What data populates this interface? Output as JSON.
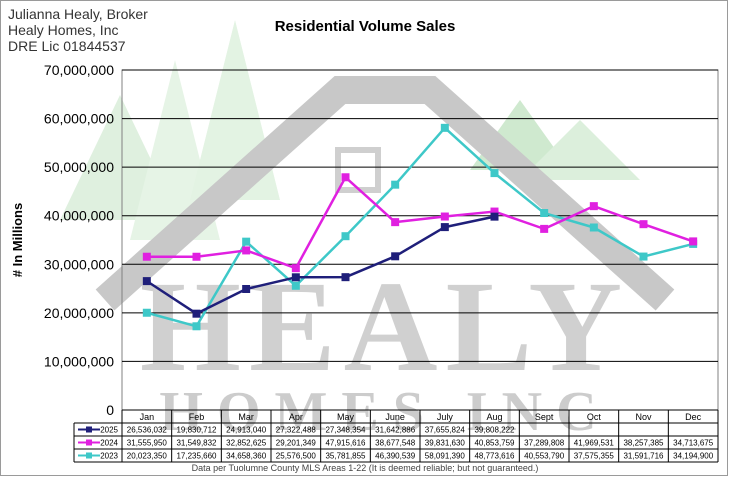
{
  "header": {
    "broker_lines": [
      "Julianna Healy, Broker",
      "Healy Homes, Inc",
      "DRE Lic 01844537"
    ]
  },
  "footnote": "Data per Tuolumne County MLS Areas 1-22 (It is deemed reliable; but not guaranteed.)",
  "watermark": {
    "line1": "HEALY",
    "line2": "HOMES INC"
  },
  "chart_data": {
    "type": "line",
    "title": "Residential Volume Sales",
    "ylabel": "# In Millions",
    "xlabel": "",
    "ylim": [
      0,
      70000000
    ],
    "yticks": [
      "0",
      "10,000,000",
      "20,000,000",
      "30,000,000",
      "40,000,000",
      "50,000,000",
      "60,000,000",
      "70,000,000"
    ],
    "grid": true,
    "legend": "data-table",
    "categories": [
      "Jan",
      "Feb",
      "Mar",
      "Apr",
      "May",
      "June",
      "July",
      "Aug",
      "Sept",
      "Oct",
      "Nov",
      "Dec"
    ],
    "series": [
      {
        "name": "2025",
        "color": "#1f1f7a",
        "values": [
          26536032,
          19830712,
          24913040,
          27322488,
          27348354,
          31642886,
          37655824,
          39808222,
          null,
          null,
          null,
          null
        ],
        "labels": [
          "26,536,032",
          "19,830,712",
          "24,913,040",
          "27,322,488",
          "27,348,354",
          "31,642,886",
          "37,655,824",
          "39,808,222",
          "",
          "",
          "",
          ""
        ]
      },
      {
        "name": "2024",
        "color": "#e020e0",
        "values": [
          31555950,
          31549832,
          32852625,
          29201349,
          47915616,
          38677548,
          39831630,
          40853759,
          37289808,
          41969531,
          38257385,
          34713675
        ],
        "labels": [
          "31,555,950",
          "31,549,832",
          "32,852,625",
          "29,201,349",
          "47,915,616",
          "38,677,548",
          "39,831,630",
          "40,853,759",
          "37,289,808",
          "41,969,531",
          "38,257,385",
          "34,713,675"
        ]
      },
      {
        "name": "2023",
        "color": "#3ec8c8",
        "values": [
          20023350,
          17235660,
          34658360,
          25576500,
          35781855,
          46390539,
          58091390,
          48773616,
          40553790,
          37575355,
          31591716,
          34194900
        ],
        "labels": [
          "20,023,350",
          "17,235,660",
          "34,658,360",
          "25,576,500",
          "35,781,855",
          "46,390,539",
          "58,091,390",
          "48,773,616",
          "40,553,790",
          "37,575,355",
          "31,591,716",
          "34,194,900"
        ]
      }
    ]
  }
}
